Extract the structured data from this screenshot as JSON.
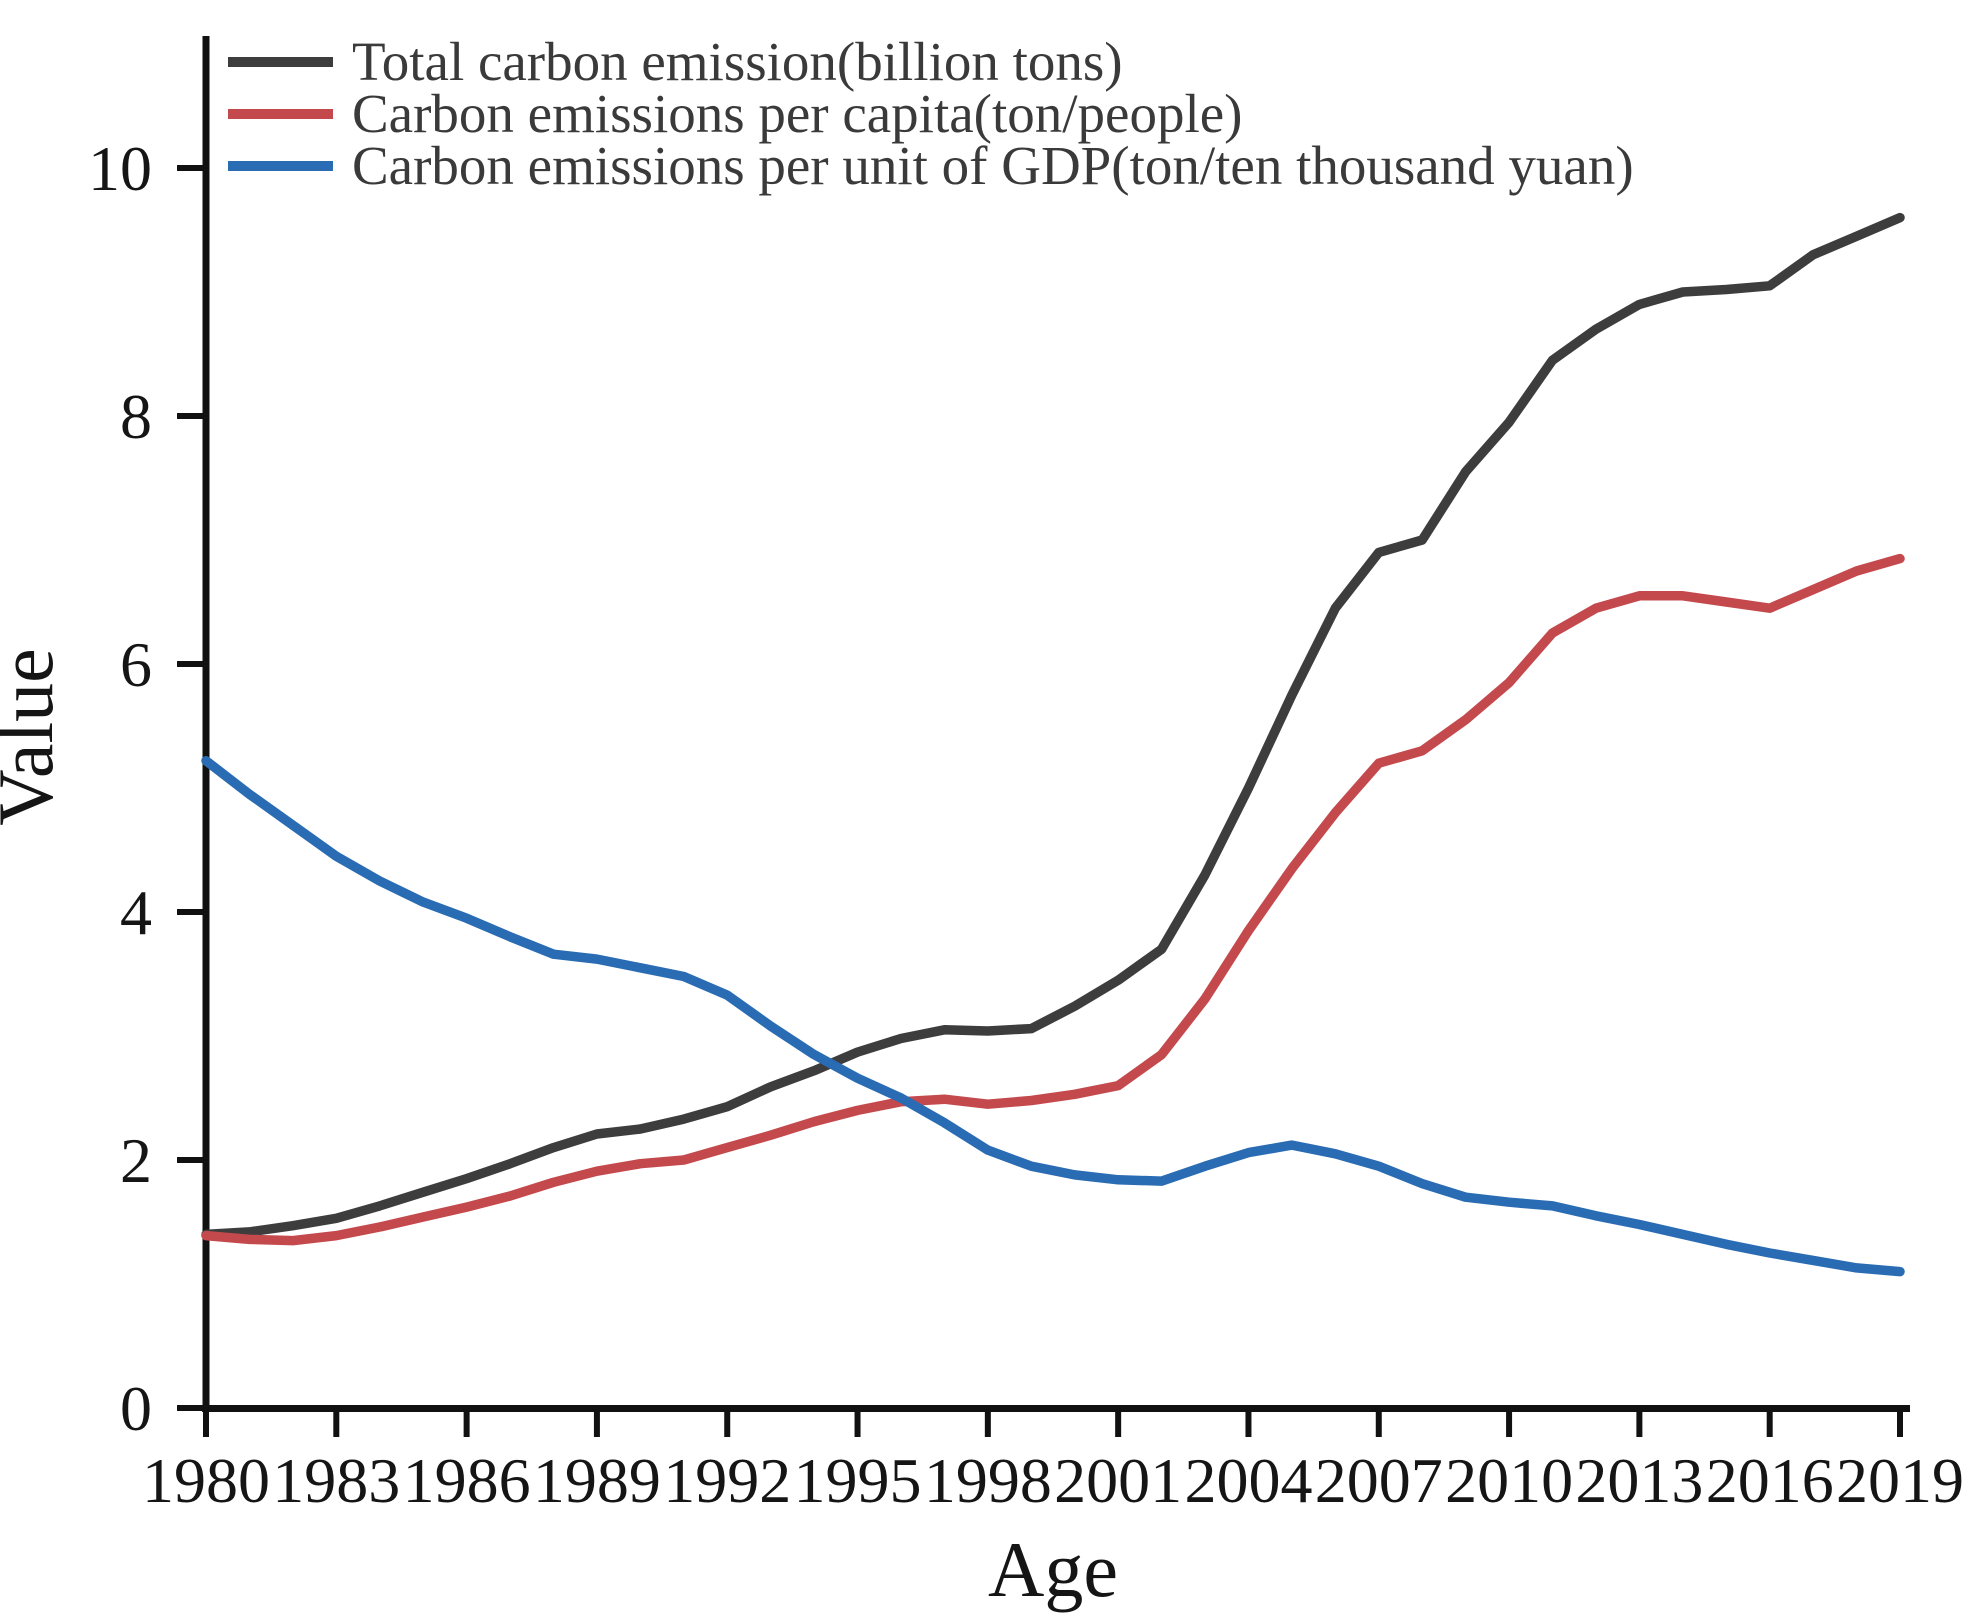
{
  "chart_data": {
    "type": "line",
    "title": "",
    "xlabel": "Age",
    "ylabel": "Value",
    "x_start": 1980,
    "x_end": 2019,
    "x_tick_step": 3,
    "x_tick_labels": [
      "1980",
      "1983",
      "1986",
      "1989",
      "1992",
      "1995",
      "1998",
      "2001",
      "2004",
      "2007",
      "2010",
      "2013",
      "2016",
      "2019"
    ],
    "yticks": [
      0,
      2,
      4,
      6,
      8,
      10
    ],
    "ylim": [
      0,
      10.8
    ],
    "grid": false,
    "legend_position": "upper-left",
    "axis_color": "#111111",
    "background_color": "#ffffff",
    "series": [
      {
        "name": "Total carbon emission(billion tons)",
        "color": "#3d3d3d",
        "values": [
          1.4,
          1.42,
          1.47,
          1.53,
          1.63,
          1.74,
          1.85,
          1.97,
          2.1,
          2.21,
          2.25,
          2.33,
          2.43,
          2.59,
          2.72,
          2.87,
          2.98,
          3.05,
          3.04,
          3.06,
          3.24,
          3.45,
          3.7,
          4.3,
          5.0,
          5.75,
          6.45,
          6.9,
          7.0,
          7.55,
          7.95,
          8.45,
          8.7,
          8.9,
          9.0,
          9.02,
          9.05,
          9.3,
          9.45,
          9.6
        ]
      },
      {
        "name": "Carbon emissions per capita(ton/people)",
        "color": "#c4494d",
        "values": [
          1.39,
          1.36,
          1.35,
          1.39,
          1.46,
          1.54,
          1.62,
          1.71,
          1.82,
          1.91,
          1.97,
          2.0,
          2.1,
          2.2,
          2.31,
          2.4,
          2.47,
          2.49,
          2.45,
          2.48,
          2.53,
          2.6,
          2.85,
          3.3,
          3.85,
          4.35,
          4.8,
          5.2,
          5.3,
          5.55,
          5.85,
          6.25,
          6.45,
          6.55,
          6.55,
          6.5,
          6.45,
          6.6,
          6.75,
          6.85
        ]
      },
      {
        "name": "Carbon emissions per unit of GDP(ton/ten thousand yuan)",
        "color": "#2a6cb3",
        "values": [
          5.22,
          4.95,
          4.7,
          4.45,
          4.25,
          4.08,
          3.95,
          3.8,
          3.66,
          3.62,
          3.55,
          3.48,
          3.33,
          3.08,
          2.85,
          2.66,
          2.5,
          2.3,
          2.08,
          1.95,
          1.88,
          1.84,
          1.83,
          1.95,
          2.06,
          2.12,
          2.05,
          1.95,
          1.81,
          1.7,
          1.66,
          1.63,
          1.55,
          1.48,
          1.4,
          1.32,
          1.25,
          1.19,
          1.13,
          1.1
        ]
      }
    ]
  }
}
